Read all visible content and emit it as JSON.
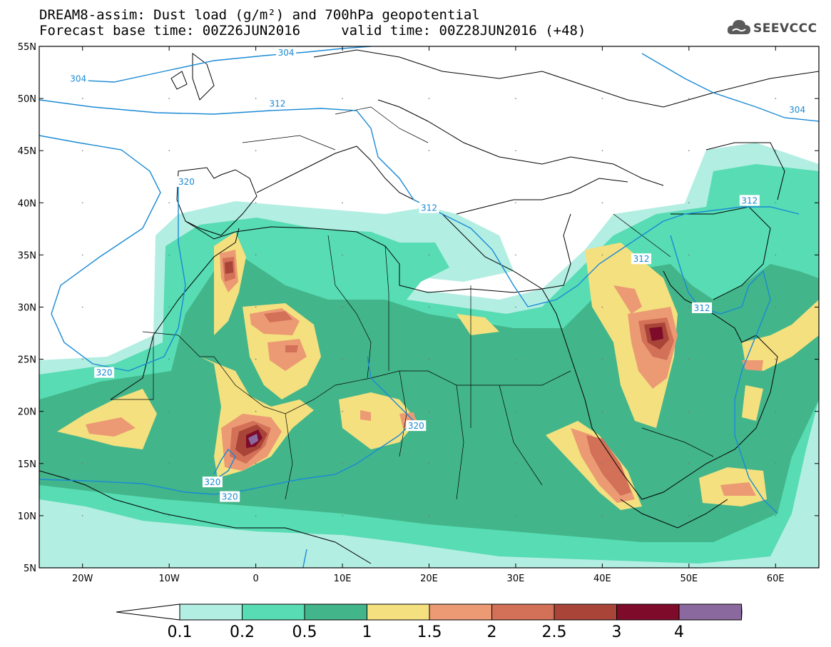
{
  "header": {
    "line1": "DREAM8-assim: Dust load (g/m²) and 700hPa geopotential",
    "line2": "Forecast base time: 00Z26JUN2016     valid time: 00Z28JUN2016 (+48)",
    "logo_text": "SEEVCCC",
    "logo_icon": "cloud-icon"
  },
  "map": {
    "lat_labels": [
      "55N",
      "50N",
      "45N",
      "40N",
      "35N",
      "30N",
      "25N",
      "20N",
      "15N",
      "10N",
      "5N"
    ],
    "lon_labels": [
      "20W",
      "10W",
      "0",
      "10E",
      "20E",
      "30E",
      "40E",
      "50E",
      "60E"
    ],
    "lat_range": [
      5,
      55
    ],
    "lon_range": [
      -25,
      65
    ],
    "contour_labels": [
      {
        "text": "304",
        "lon": -20.5,
        "lat": 51.9
      },
      {
        "text": "304",
        "lon": 3.5,
        "lat": 54.4
      },
      {
        "text": "304",
        "lon": 62.5,
        "lat": 48.9
      },
      {
        "text": "312",
        "lon": 2.5,
        "lat": 49.5
      },
      {
        "text": "312",
        "lon": 20,
        "lat": 39.5
      },
      {
        "text": "312",
        "lon": 44.5,
        "lat": 34.6
      },
      {
        "text": "312",
        "lon": 51.5,
        "lat": 29.9
      },
      {
        "text": "312",
        "lon": 57,
        "lat": 40.2
      },
      {
        "text": "320",
        "lon": -17.5,
        "lat": 23.7
      },
      {
        "text": "320",
        "lon": -8,
        "lat": 42
      },
      {
        "text": "320",
        "lon": 18.5,
        "lat": 18.6
      },
      {
        "text": "320",
        "lon": -5,
        "lat": 13.2
      },
      {
        "text": "320",
        "lon": -3,
        "lat": 11.8
      }
    ]
  },
  "colorbar": {
    "labels": [
      "0.1",
      "0.2",
      "0.5",
      "1",
      "1.5",
      "2",
      "2.5",
      "3",
      "4"
    ],
    "colors": [
      "#b3eee3",
      "#57dcb3",
      "#43b58a",
      "#f4e07f",
      "#ec9a74",
      "#d27058",
      "#a84438",
      "#7e0b2a",
      "#8a6a9e"
    ],
    "under_color": "#ffffff",
    "over_color": "#a0a0a0"
  },
  "palette": {
    "contour": "#1a8ad4",
    "coast": "#000000"
  }
}
